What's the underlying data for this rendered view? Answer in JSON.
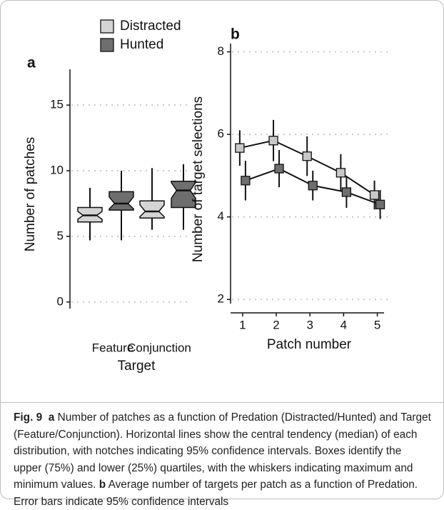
{
  "chart_data": [
    {
      "type": "box",
      "panel_label": "a",
      "ylabel": "Number of patches",
      "xlabel": "Target",
      "categories": [
        "Feature",
        "Conjunction"
      ],
      "ylim": [
        -0.5,
        18
      ],
      "yticks": [
        0,
        5,
        10,
        15
      ],
      "grid": true,
      "legend": "top",
      "series": [
        {
          "name": "Distracted",
          "color": "#d4d4d4",
          "boxes": [
            {
              "whislo": 4.7,
              "q1": 6.1,
              "notch_lo": 6.3,
              "med": 6.6,
              "notch_hi": 6.9,
              "q3": 7.2,
              "whishi": 8.7
            },
            {
              "whislo": 5.5,
              "q1": 6.4,
              "notch_lo": 6.5,
              "med": 6.9,
              "notch_hi": 7.4,
              "q3": 7.7,
              "whishi": 10.2
            }
          ]
        },
        {
          "name": "Hunted",
          "color": "#6e6e6e",
          "boxes": [
            {
              "whislo": 4.7,
              "q1": 7.0,
              "notch_lo": 7.1,
              "med": 7.5,
              "notch_hi": 8.0,
              "q3": 8.4,
              "whishi": 10.0
            },
            {
              "whislo": 5.5,
              "q1": 7.2,
              "notch_lo": 7.9,
              "med": 8.5,
              "notch_hi": 9.1,
              "q3": 9.2,
              "whishi": 10.5
            }
          ]
        }
      ]
    },
    {
      "type": "line",
      "panel_label": "b",
      "ylabel": "Number of target selections",
      "xlabel": "Patch number",
      "x": [
        1,
        2,
        3,
        4,
        5
      ],
      "xlim": [
        0.6,
        5.2
      ],
      "xticks": [
        1,
        2,
        3,
        4,
        5
      ],
      "ylim": [
        1.9,
        8.2
      ],
      "yticks": [
        2,
        4,
        6,
        8
      ],
      "grid": true,
      "series": [
        {
          "color": "#c8c8c8",
          "values": [
            5.67,
            5.85,
            5.47,
            5.07,
            4.53
          ],
          "errors": [
            0.43,
            0.5,
            0.48,
            0.45,
            0.35
          ]
        },
        {
          "color": "#6e6e6e",
          "values": [
            4.88,
            5.17,
            4.76,
            4.6,
            4.3
          ],
          "errors": [
            0.48,
            0.45,
            0.36,
            0.38,
            0.35
          ]
        }
      ]
    }
  ],
  "caption": {
    "label": "Fig. 9",
    "a_label": "a",
    "a_text": "Number of patches as a function of Predation (Distracted/Hunted) and Target (Feature/Conjunction). Horizontal lines show the central tendency (median) of each distribution, with notches indicating 95% confidence intervals. Boxes identify the upper (75%) and lower (25%) quartiles, with the whiskers indicating maximum and minimum values.",
    "b_label": "b",
    "b_text": "Average number of targets per patch as a function of Predation. Error bars indicate 95% confidence intervals"
  }
}
